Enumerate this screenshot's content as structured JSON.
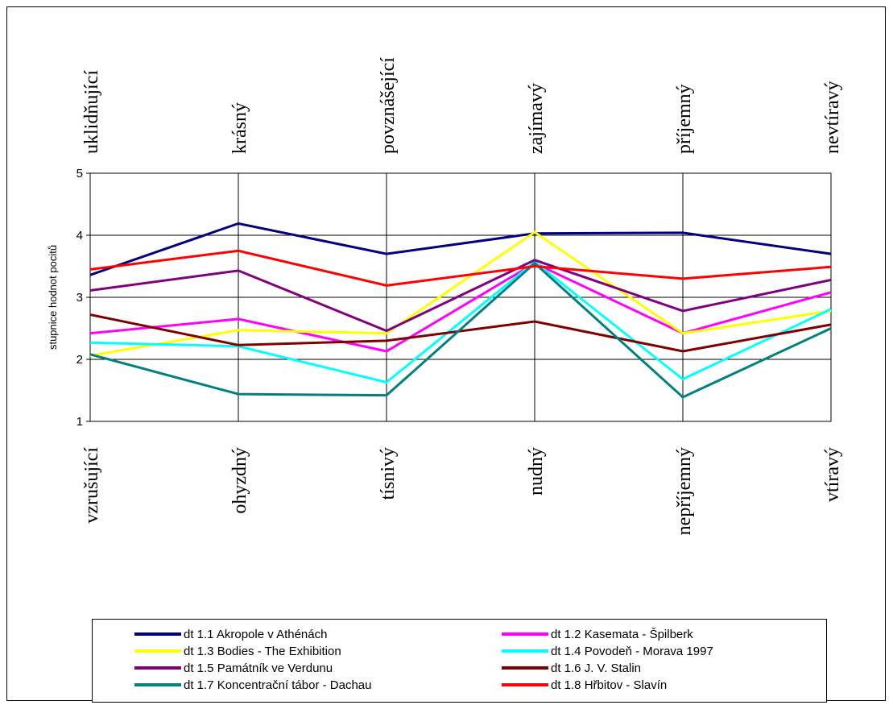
{
  "chart_data": {
    "type": "line",
    "ylabel": "stupnice hodnot pocitů",
    "ylim": [
      1,
      5
    ],
    "yticks": [
      "1",
      "2",
      "3",
      "4",
      "5"
    ],
    "top_labels": [
      "uklidňující",
      "krásný",
      "povznášející",
      "zajímavý",
      "příjemný",
      "nevtíravý"
    ],
    "bottom_labels": [
      "vzrušující",
      "ohyzdný",
      "tísnivý",
      "nudný",
      "nepříjemný",
      "vtíravý"
    ],
    "grid": true,
    "legend_position": "bottom",
    "series": [
      {
        "name": "dt 1.1 Akropole v Athénách",
        "color": "#000080",
        "values": [
          3.36,
          4.19,
          3.7,
          4.03,
          4.04,
          3.7
        ]
      },
      {
        "name": "dt 1.2 Kasemata - Špilberk",
        "color": "#FF00FF",
        "values": [
          2.42,
          2.65,
          2.13,
          3.55,
          2.42,
          3.08
        ]
      },
      {
        "name": "dt 1.3 Bodies - The Exhibition",
        "color": "#FFFF00",
        "values": [
          2.06,
          2.47,
          2.42,
          4.05,
          2.42,
          2.78
        ]
      },
      {
        "name": "dt 1.4 Povodeň - Morava 1997",
        "color": "#00FFFF",
        "values": [
          2.27,
          2.21,
          1.63,
          3.57,
          1.68,
          2.81
        ]
      },
      {
        "name": "dt 1.5 Památník ve Verdunu",
        "color": "#800080",
        "values": [
          3.11,
          3.43,
          2.46,
          3.6,
          2.78,
          3.28
        ]
      },
      {
        "name": "dt 1.6 J. V. Stalin",
        "color": "#800000",
        "values": [
          2.72,
          2.23,
          2.3,
          2.61,
          2.13,
          2.56
        ]
      },
      {
        "name": "dt 1.7 Koncentrační tábor - Dachau",
        "color": "#008080",
        "values": [
          2.08,
          1.44,
          1.42,
          3.55,
          1.39,
          2.5
        ]
      },
      {
        "name": "dt 1.8 Hřbitov - Slavín",
        "color": "#FF0000",
        "values": [
          3.45,
          3.75,
          3.19,
          3.5,
          3.3,
          3.49
        ]
      }
    ]
  }
}
